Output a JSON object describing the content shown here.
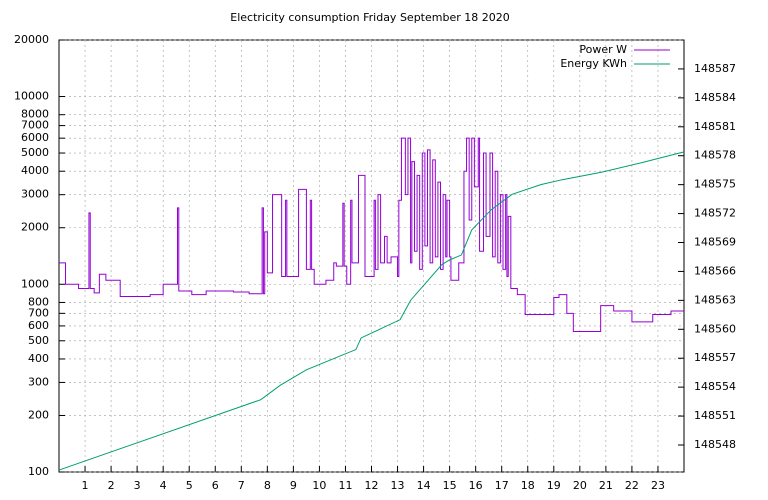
{
  "chart_data": {
    "type": "line",
    "title": "Electricity consumption Friday September 18 2020",
    "xlim": [
      0,
      24
    ],
    "xticks": [
      1,
      2,
      3,
      4,
      5,
      6,
      7,
      8,
      9,
      10,
      11,
      12,
      13,
      14,
      15,
      16,
      17,
      18,
      19,
      20,
      21,
      22,
      23
    ],
    "ylim": [
      100,
      20000
    ],
    "yscale": "log",
    "yticks": [
      100,
      200,
      300,
      400,
      500,
      600,
      700,
      800,
      1000,
      2000,
      3000,
      4000,
      5000,
      6000,
      7000,
      8000,
      10000,
      20000
    ],
    "y2lim": [
      148545.2,
      148590
    ],
    "y2ticks": [
      148548,
      148551,
      148554,
      148557,
      148560,
      148563,
      148566,
      148569,
      148572,
      148575,
      148578,
      148581,
      148584,
      148587
    ],
    "grid": true,
    "legend": "top-right",
    "series": [
      {
        "name": "Power W",
        "color": "#9400d3",
        "step": true,
        "x": [
          0,
          0.25,
          0.75,
          1.15,
          1.2,
          1.35,
          1.55,
          1.8,
          2.35,
          3.5,
          4.0,
          4.55,
          4.6,
          5.1,
          5.65,
          6.7,
          7.3,
          7.8,
          7.85,
          7.9,
          8.0,
          8.2,
          8.55,
          8.7,
          8.75,
          9.2,
          9.5,
          9.65,
          9.7,
          9.8,
          10.25,
          10.55,
          10.65,
          10.9,
          10.95,
          11.05,
          11.2,
          11.25,
          11.5,
          11.75,
          12.1,
          12.15,
          12.25,
          12.35,
          12.5,
          12.6,
          12.75,
          13.0,
          13.05,
          13.15,
          13.3,
          13.4,
          13.5,
          13.55,
          13.65,
          13.75,
          13.85,
          13.95,
          14.05,
          14.15,
          14.25,
          14.35,
          14.45,
          14.55,
          14.65,
          14.75,
          14.85,
          14.9,
          15.0,
          15.05,
          15.35,
          15.55,
          15.65,
          15.75,
          15.85,
          15.95,
          16.1,
          16.15,
          16.3,
          16.4,
          16.55,
          16.65,
          16.75,
          16.85,
          16.95,
          17.05,
          17.15,
          17.2,
          17.25,
          17.35,
          17.6,
          17.9,
          19.0,
          19.2,
          19.5,
          19.75,
          20.8,
          21.3,
          22.0,
          22.8,
          23.5,
          24
        ],
        "values": [
          1300,
          1000,
          950,
          2400,
          950,
          900,
          1130,
          1050,
          860,
          880,
          1000,
          2550,
          920,
          880,
          920,
          910,
          890,
          2550,
          890,
          1900,
          1150,
          3000,
          1100,
          2800,
          1100,
          3200,
          1200,
          2800,
          1200,
          1000,
          1050,
          1300,
          1250,
          2700,
          1250,
          1000,
          2800,
          1300,
          3800,
          1100,
          2800,
          1200,
          3000,
          1300,
          1800,
          1300,
          1400,
          1100,
          2800,
          6000,
          3000,
          6000,
          1300,
          4500,
          1500,
          3800,
          1200,
          5000,
          1600,
          5200,
          1300,
          4600,
          1400,
          3500,
          1200,
          3000,
          1400,
          2800,
          1400,
          1050,
          1300,
          4000,
          6000,
          2200,
          6000,
          3300,
          6000,
          1500,
          5000,
          1800,
          5000,
          1400,
          4000,
          1300,
          3000,
          1200,
          3000,
          1100,
          2300,
          950,
          880,
          690,
          850,
          880,
          700,
          560,
          770,
          720,
          630,
          690,
          720,
          720
        ]
      },
      {
        "name": "Energy KWh",
        "color": "#009e73",
        "axis": "y2",
        "x": [
          0,
          7.75,
          8.5,
          9.5,
          11.4,
          11.6,
          13.1,
          13.5,
          14.7,
          15.0,
          15.45,
          15.85,
          16.6,
          17.4,
          18.5,
          19.3,
          20.85,
          22.4,
          24
        ],
        "values": [
          148545.4,
          148552.7,
          148554.2,
          148555.8,
          148557.9,
          148559.1,
          148561,
          148563,
          148566.7,
          148567.2,
          148567.7,
          148570.3,
          148572.4,
          148574,
          148575,
          148575.5,
          148576.3,
          148577.3,
          148578.4
        ]
      }
    ]
  }
}
